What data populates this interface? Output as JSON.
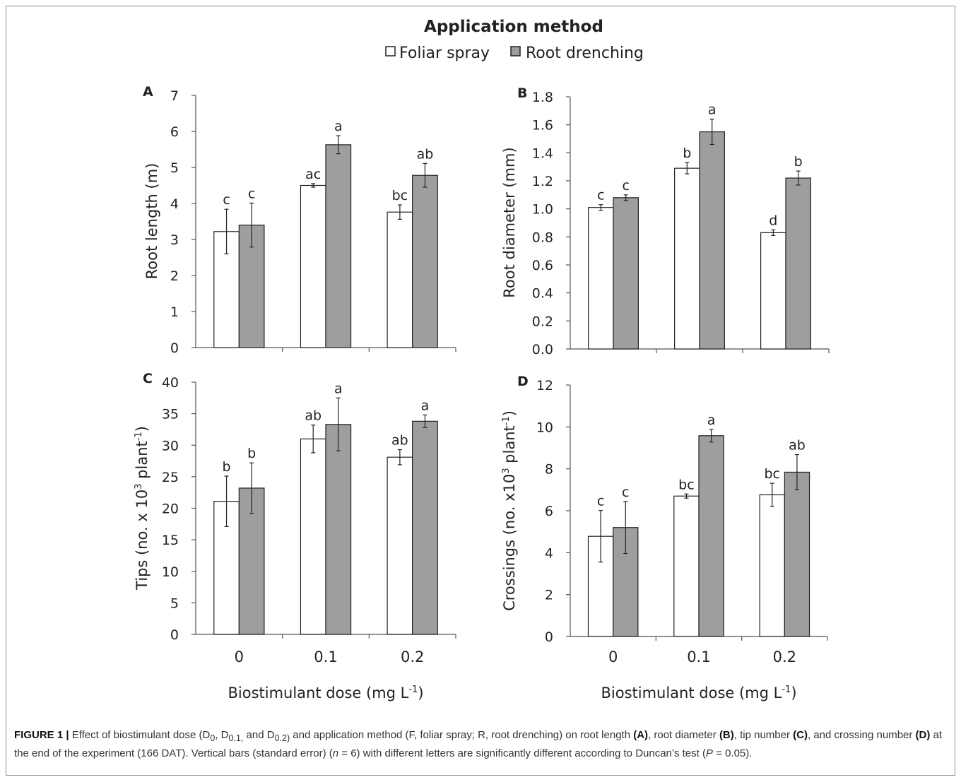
{
  "figure": {
    "legend_title": "Application method",
    "x_title_text": "Biostimulant dose (mg L",
    "x_title_sup": "-1",
    "x_title_close": ")"
  },
  "caption": {
    "label": "FIGURE 1 |",
    "part1": " Effect of biostimulant dose (D",
    "sub0": "0",
    "part2": ", D",
    "sub1": "0.1,",
    "part3": " and D",
    "sub2": "0.2)",
    "part4": " and application method (F, foliar spray; R, root drenching) on root length ",
    "refA": "(A)",
    "part5": ", root diameter ",
    "refB": "(B)",
    "part6": ", tip number ",
    "refC": "(C)",
    "part7": ", and crossing number ",
    "refD": "(D)",
    "part8": " at the end of the experiment (166 DAT). Vertical bars (standard error) (",
    "n_var": "n",
    "part9": " = 6) with different letters are significantly different according to Duncan’s test (",
    "p_var": "P",
    "part10": " = 0.05)."
  },
  "chart_data": [
    {
      "panel": "A",
      "type": "bar",
      "categories": [
        "0",
        "0.1",
        "0.2"
      ],
      "ylabel": "Root length (m)",
      "ylim": [
        0,
        7
      ],
      "yticks": [
        "0",
        "1",
        "2",
        "3",
        "4",
        "5",
        "6",
        "7"
      ],
      "show_category_labels": false,
      "show_x_title": false,
      "series": [
        {
          "name": "Foliar spray",
          "color": "#ffffff",
          "values": [
            3.22,
            4.5,
            3.76
          ],
          "errors": [
            0.62,
            0.05,
            0.2
          ],
          "letters": [
            "c",
            "ac",
            "bc"
          ]
        },
        {
          "name": "Root drenching",
          "color": "#9e9e9e",
          "values": [
            3.4,
            5.63,
            4.78
          ],
          "errors": [
            0.61,
            0.25,
            0.33
          ],
          "letters": [
            "c",
            "a",
            "ab"
          ]
        }
      ]
    },
    {
      "panel": "B",
      "type": "bar",
      "categories": [
        "0",
        "0.1",
        "0.2"
      ],
      "ylabel": "Root diameter (mm)",
      "ylim": [
        0,
        1.8
      ],
      "yticks": [
        "0.0",
        "0.2",
        "0.4",
        "0.6",
        "0.8",
        "1.0",
        "1.2",
        "1.4",
        "1.6",
        "1.8"
      ],
      "show_category_labels": false,
      "show_x_title": false,
      "series": [
        {
          "name": "Foliar spray",
          "color": "#ffffff",
          "values": [
            1.01,
            1.29,
            0.83
          ],
          "errors": [
            0.02,
            0.04,
            0.02
          ],
          "letters": [
            "c",
            "b",
            "d"
          ]
        },
        {
          "name": "Root drenching",
          "color": "#9e9e9e",
          "values": [
            1.08,
            1.55,
            1.22
          ],
          "errors": [
            0.02,
            0.09,
            0.05
          ],
          "letters": [
            "c",
            "a",
            "b"
          ]
        }
      ]
    },
    {
      "panel": "C",
      "type": "bar",
      "categories": [
        "0",
        "0.1",
        "0.2"
      ],
      "ylabel": "Tips (no. x 10",
      "ylabel_sup1": "3",
      "ylabel_mid": " plant",
      "ylabel_sup2": "-1",
      "ylabel_end": ")",
      "ylim": [
        0,
        40
      ],
      "yticks": [
        "0",
        "5",
        "10",
        "15",
        "20",
        "25",
        "30",
        "35",
        "40"
      ],
      "show_category_labels": true,
      "show_x_title": true,
      "series": [
        {
          "name": "Foliar spray",
          "color": "#ffffff",
          "values": [
            21.1,
            31.0,
            28.1
          ],
          "errors": [
            4.0,
            2.2,
            1.2
          ],
          "letters": [
            "b",
            "ab",
            "ab"
          ]
        },
        {
          "name": "Root drenching",
          "color": "#9e9e9e",
          "values": [
            23.2,
            33.3,
            33.8
          ],
          "errors": [
            4.0,
            4.2,
            1.0
          ],
          "letters": [
            "b",
            "a",
            "a"
          ]
        }
      ]
    },
    {
      "panel": "D",
      "type": "bar",
      "categories": [
        "0",
        "0.1",
        "0.2"
      ],
      "ylabel": "Crossings (no. x10",
      "ylabel_sup1": "3",
      "ylabel_mid": " plant",
      "ylabel_sup2": "-1",
      "ylabel_end": ")",
      "ylim": [
        0,
        12
      ],
      "yticks": [
        "0",
        "2",
        "4",
        "6",
        "8",
        "10",
        "12"
      ],
      "show_category_labels": true,
      "show_x_title": true,
      "series": [
        {
          "name": "Foliar spray",
          "color": "#ffffff",
          "values": [
            4.78,
            6.7,
            6.76
          ],
          "errors": [
            1.23,
            0.1,
            0.55
          ],
          "letters": [
            "c",
            "bc",
            "bc"
          ]
        },
        {
          "name": "Root drenching",
          "color": "#9e9e9e",
          "values": [
            5.2,
            9.58,
            7.84
          ],
          "errors": [
            1.24,
            0.3,
            0.84
          ],
          "letters": [
            "c",
            "a",
            "ab"
          ]
        }
      ]
    }
  ]
}
